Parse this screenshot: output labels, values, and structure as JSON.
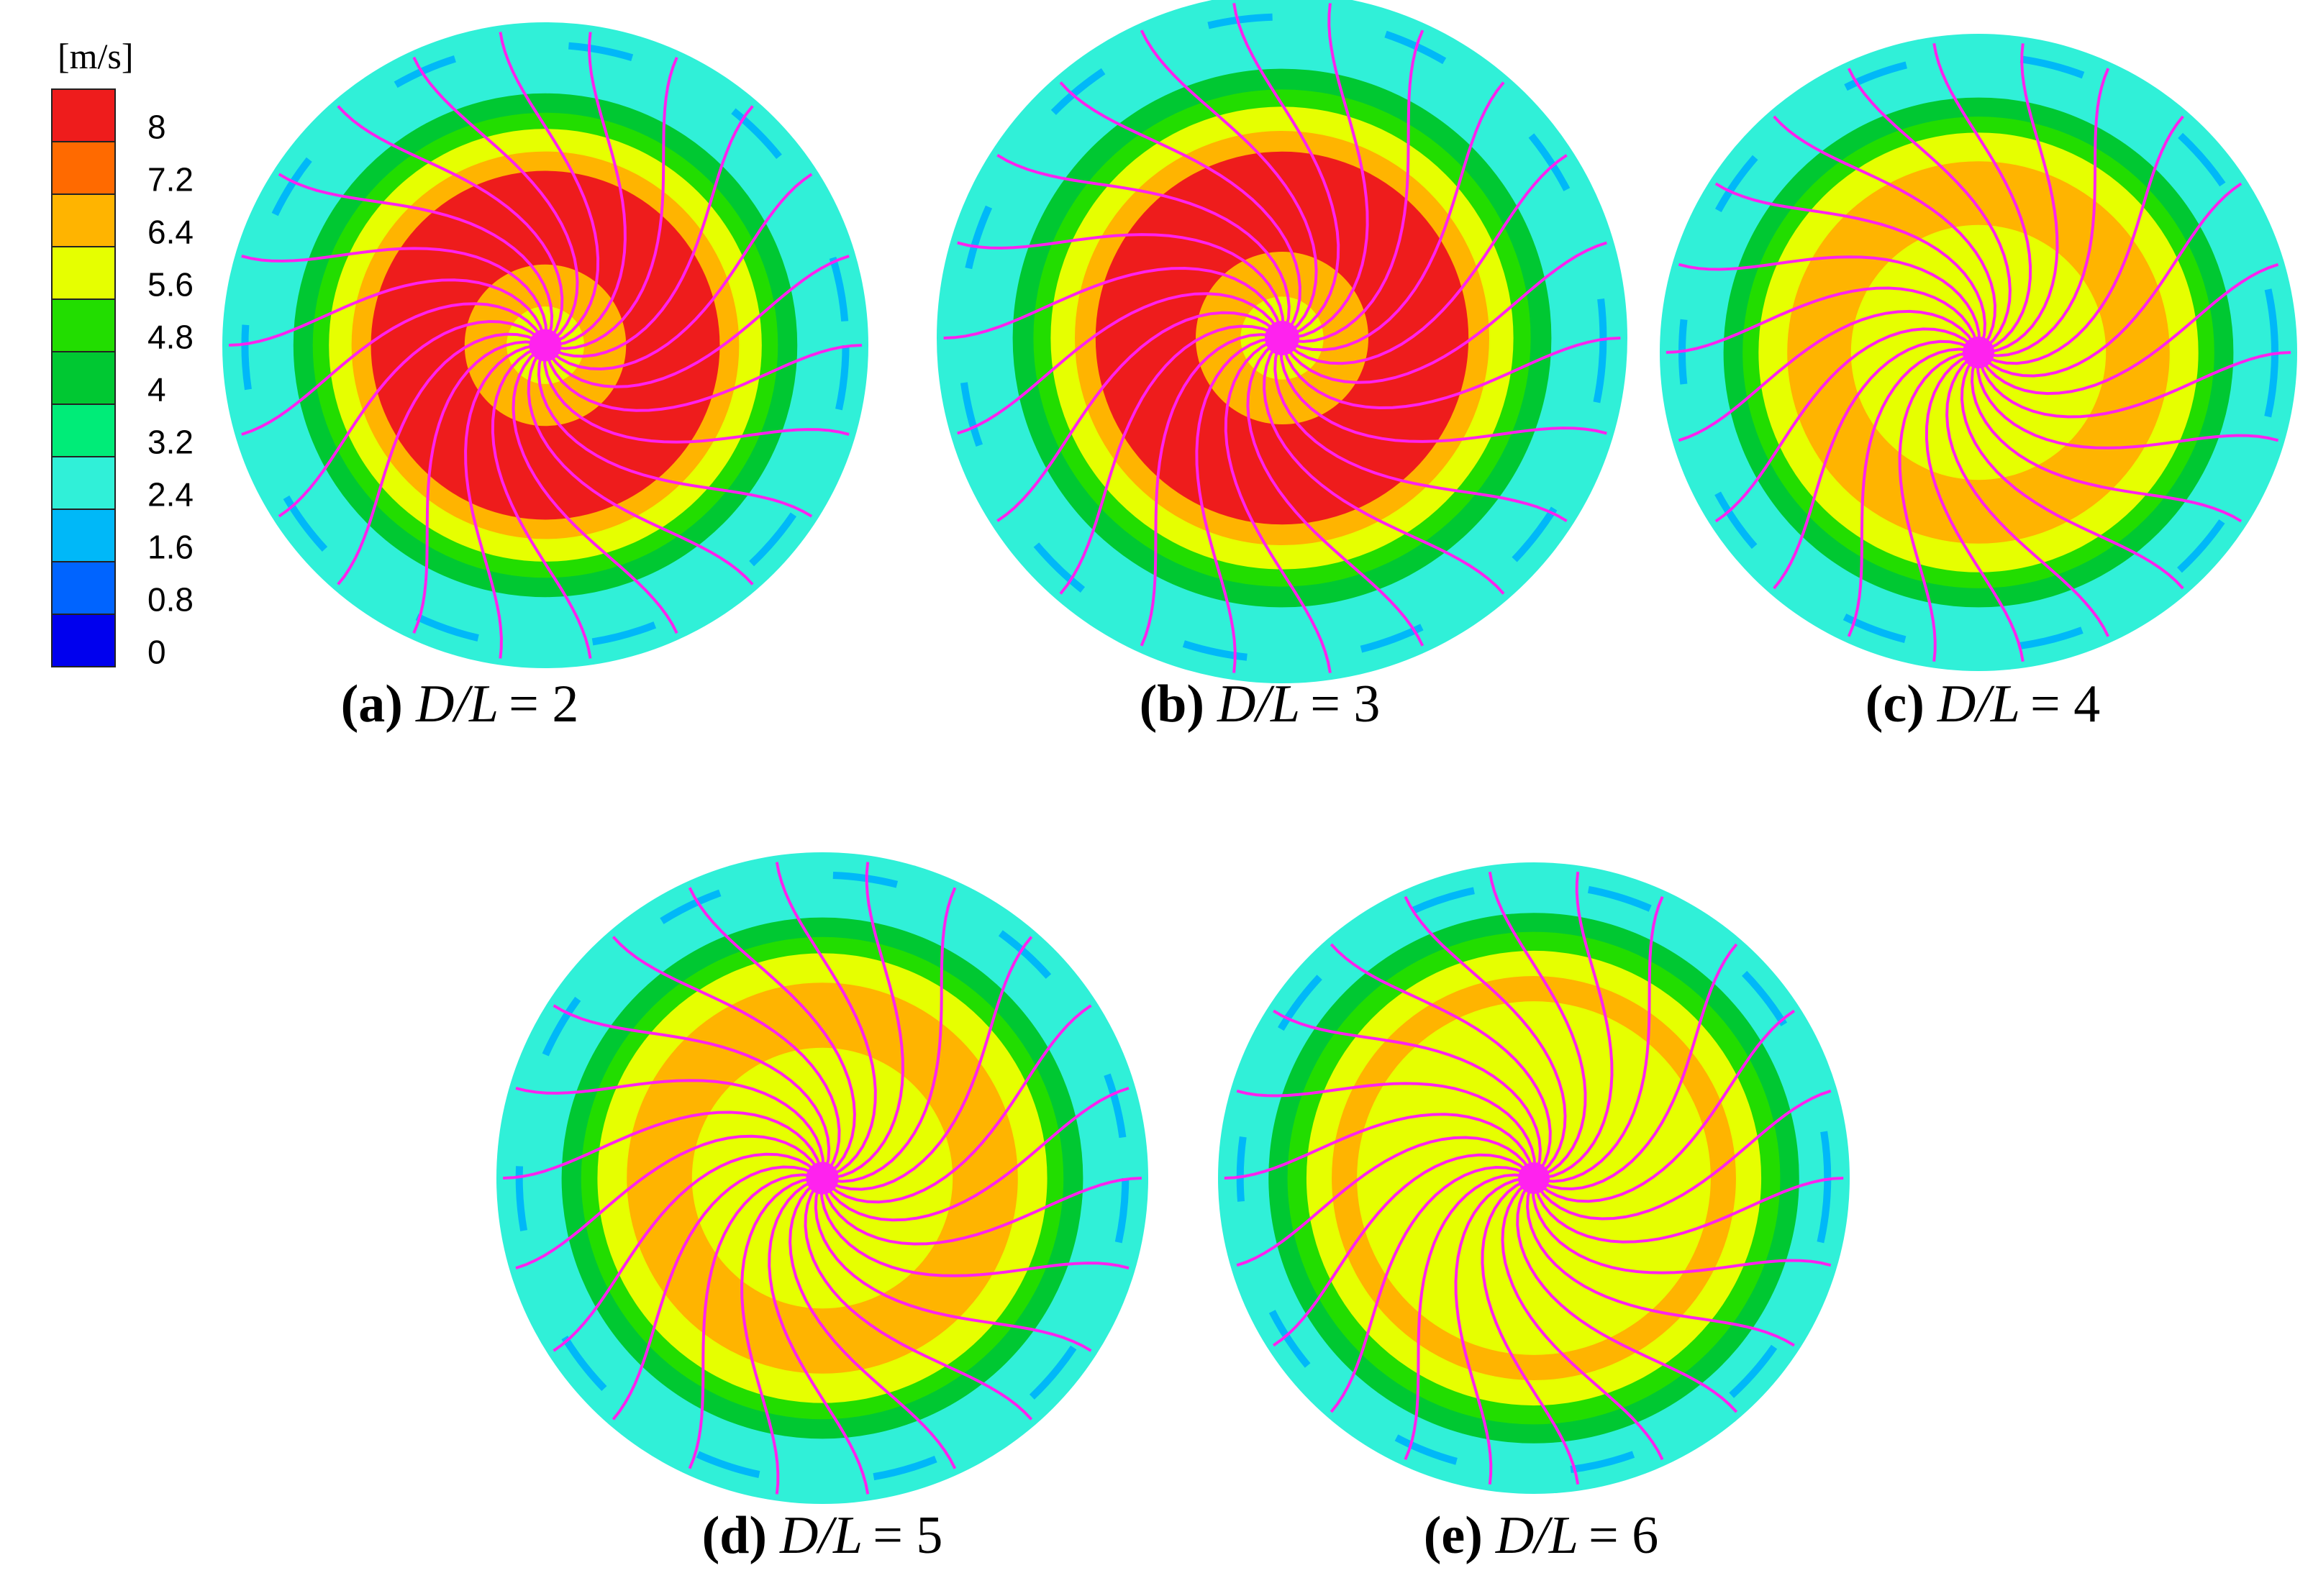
{
  "colorbar": {
    "unit": "[m/s]",
    "levels": [
      8,
      7.2,
      6.4,
      5.6,
      4.8,
      4,
      3.2,
      2.4,
      1.6,
      0.8,
      0
    ],
    "colors": [
      "#ee1c1c",
      "#ff6a00",
      "#ffb400",
      "#e6ff00",
      "#22dd00",
      "#00c832",
      "#00ec78",
      "#30f0d8",
      "#00b8f8",
      "#0064ff",
      "#0000ee"
    ]
  },
  "panels": [
    {
      "label": "(a)",
      "var": "D/L",
      "eq": "= 2"
    },
    {
      "label": "(b)",
      "var": "D/L",
      "eq": "= 3"
    },
    {
      "label": "(c)",
      "var": "D/L",
      "eq": "= 4"
    },
    {
      "label": "(d)",
      "var": "D/L",
      "eq": "= 5"
    },
    {
      "label": "(e)",
      "var": "D/L",
      "eq": "= 6"
    }
  ]
}
